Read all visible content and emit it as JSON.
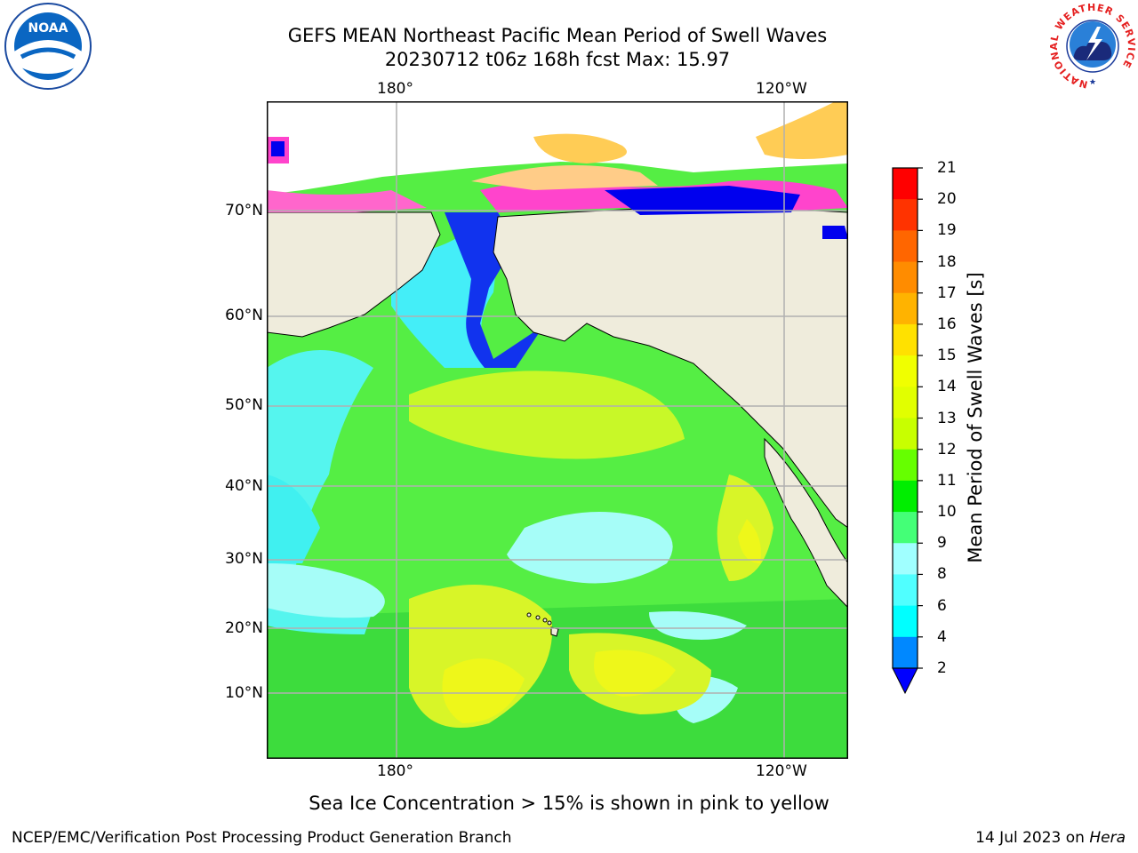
{
  "title": {
    "line1": "GEFS MEAN Northeast Pacific Mean Period of Swell Waves",
    "line2": "20230712 t06z 168h fcst   Max: 15.97"
  },
  "map": {
    "lon_labels": [
      "180°",
      "120°W"
    ],
    "lat_labels": [
      "70°N",
      "60°N",
      "50°N",
      "40°N",
      "30°N",
      "20°N",
      "10°N"
    ],
    "land_color": "#efecdc",
    "grid_color": "#b0b0b0"
  },
  "colorbar": {
    "label": "Mean Period of Swell Waves [s]",
    "ticks": [
      "21",
      "20",
      "19",
      "18",
      "17",
      "16",
      "15",
      "14",
      "13",
      "12",
      "11",
      "10",
      "9",
      "8",
      "6",
      "4",
      "2"
    ],
    "colors": [
      "#ff0000",
      "#ff3300",
      "#ff6600",
      "#ff8c00",
      "#ffb300",
      "#ffe100",
      "#f0ff00",
      "#e1ff00",
      "#c8ff00",
      "#66ff00",
      "#00ee00",
      "#44ff77",
      "#a0ffff",
      "#50ffff",
      "#00ffff",
      "#0088ff"
    ],
    "under_color": "#0000ff"
  },
  "footer": {
    "ice_note": "Sea Ice Concentration > 15% is shown in pink to yellow",
    "left": "NCEP/EMC/Verification Post Processing Product Generation Branch",
    "date": "14 Jul 2023 on ",
    "machine": "Hera"
  },
  "logos": {
    "noaa": "NOAA",
    "nws_ring": "NATIONAL WEATHER SERVICE"
  }
}
